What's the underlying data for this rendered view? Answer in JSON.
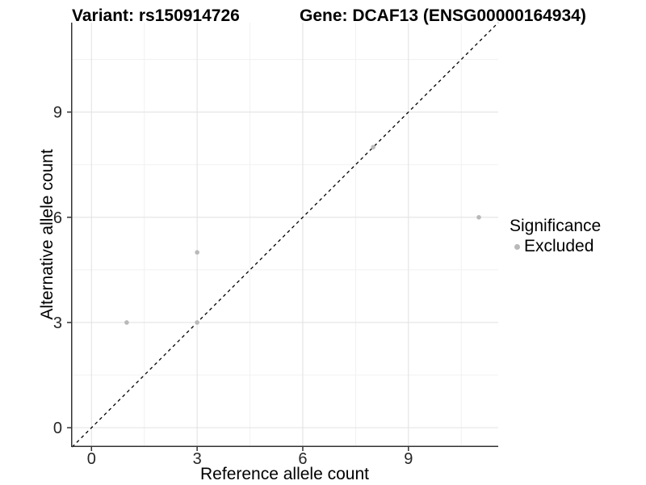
{
  "header": {
    "title_variant": "Variant: rs150914726",
    "title_gene": "Gene: DCAF13 (ENSG00000164934)"
  },
  "legend": {
    "title": "Significance",
    "items": [
      {
        "label": "Excluded",
        "color": "#b9b9b9"
      }
    ]
  },
  "colors": {
    "point": "#b9b9b9",
    "axis_line": "#333333",
    "tick_text": "#262626",
    "grid_major": "#e3e3e3",
    "grid_minor": "#f1f1f1",
    "reference_line": "#000000",
    "background": "#ffffff"
  },
  "chart_data": {
    "type": "scatter",
    "title": "Variant: rs150914726 | Gene: DCAF13 (ENSG00000164934)",
    "xlabel": "Reference allele count",
    "ylabel": "Alternative allele count",
    "xlim": [
      -0.58,
      11.55
    ],
    "ylim": [
      -0.55,
      11.55
    ],
    "x_ticks": [
      0,
      3,
      6,
      9
    ],
    "y_ticks": [
      0,
      3,
      6,
      9
    ],
    "x_minor_ticks": [
      1.5,
      4.5,
      7.5,
      10.5
    ],
    "y_minor_ticks": [
      1.5,
      4.5,
      7.5,
      10.5
    ],
    "grid": true,
    "legend_position": "right",
    "reference_line": {
      "kind": "identity y=x",
      "style": "dashed",
      "color": "#000000"
    },
    "series": [
      {
        "name": "Excluded",
        "color": "#b9b9b9",
        "points": [
          {
            "x": 1,
            "y": 3
          },
          {
            "x": 3,
            "y": 3
          },
          {
            "x": 3,
            "y": 5
          },
          {
            "x": 8,
            "y": 8
          },
          {
            "x": 11,
            "y": 6
          }
        ]
      }
    ]
  }
}
